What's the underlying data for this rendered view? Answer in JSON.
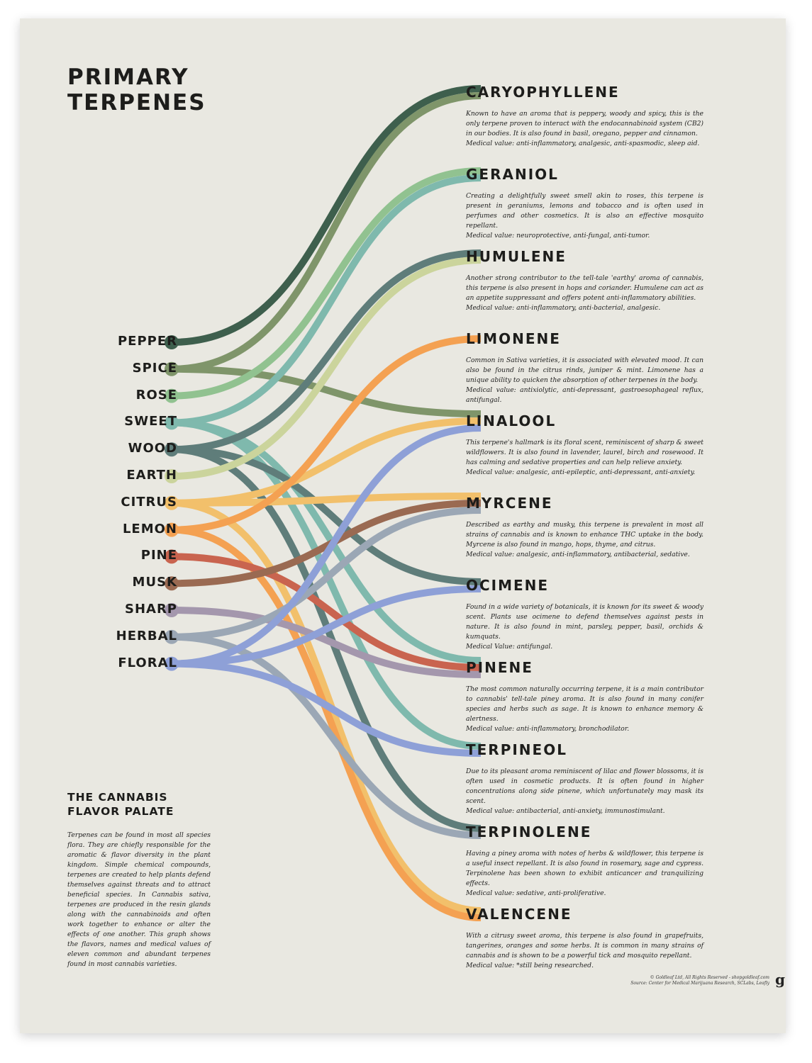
{
  "title": [
    "PRIMARY",
    "TERPENES"
  ],
  "flavors": [
    {
      "name": "PEPPER",
      "color": "#3e5f4d",
      "targets": [
        "CARYOPHYLLENE"
      ]
    },
    {
      "name": "SPICE",
      "color": "#7f956a",
      "targets": [
        "CARYOPHYLLENE",
        "LINALOOL"
      ]
    },
    {
      "name": "ROSE",
      "color": "#91c290",
      "targets": [
        "GERANIOL"
      ]
    },
    {
      "name": "SWEET",
      "color": "#7fb9ad",
      "targets": [
        "GERANIOL",
        "PINENE",
        "TERPINEOL"
      ]
    },
    {
      "name": "WOOD",
      "color": "#5f7d7a",
      "targets": [
        "HUMULENE",
        "OCIMENE",
        "TERPINOLENE"
      ]
    },
    {
      "name": "EARTH",
      "color": "#cbd49c",
      "targets": [
        "HUMULENE"
      ]
    },
    {
      "name": "CITRUS",
      "color": "#f2c06b",
      "targets": [
        "LINALOOL",
        "MYRCENE",
        "VALENCENE"
      ]
    },
    {
      "name": "LEMON",
      "color": "#f4a152",
      "targets": [
        "LIMONENE",
        "VALENCENE"
      ]
    },
    {
      "name": "PINE",
      "color": "#c9644f",
      "targets": [
        "PINENE"
      ]
    },
    {
      "name": "MUSK",
      "color": "#9a6a52",
      "targets": [
        "MYRCENE"
      ]
    },
    {
      "name": "SHARP",
      "color": "#a497ad",
      "targets": [
        "PINENE"
      ]
    },
    {
      "name": "HERBAL",
      "color": "#9ba7b5",
      "targets": [
        "MYRCENE",
        "TERPINOLENE"
      ]
    },
    {
      "name": "FLORAL",
      "color": "#8ea0d7",
      "targets": [
        "LINALOOL",
        "OCIMENE",
        "TERPINEOL"
      ]
    }
  ],
  "terpenes": [
    {
      "name": "CARYOPHYLLENE",
      "desc": "Known to have an aroma that is peppery, woody and spicy, this is the only terpene proven to interact with the endocannabinoid system (CB2) in our bodies. It is also found in basil, oregano, pepper and cinnamon.",
      "medical": "Medical value: anti-inflammatory, analgesic, anti-spasmodic, sleep aid."
    },
    {
      "name": "GERANIOL",
      "desc": "Creating a delightfully sweet smell akin to roses, this terpene is present in geraniums, lemons and tobacco and is often used in perfumes and other cosmetics. It is also an effective mosquito repellant.",
      "medical": "Medical value: neuroprotective, anti-fungal, anti-tumor."
    },
    {
      "name": "HUMULENE",
      "desc": "Another strong contributor to the tell-tale 'earthy' aroma of cannabis, this terpene is also present in hops and coriander. Humulene can act as an appetite suppressant and offers potent anti-inflammatory abilities.",
      "medical": "Medical value: anti-inflammatory, anti-bacterial, analgesic."
    },
    {
      "name": "LIMONENE",
      "desc": "Common in Sativa varieties, it is associated with elevated mood. It can also be found in the citrus rinds, juniper & mint. Limonene has a unique ability to quicken the absorption of other terpenes in the body.",
      "medical": "Medical value: antixiolytic, anti-depressant, gastroesophageal reflux, antifungal."
    },
    {
      "name": "LINALOOL",
      "desc": "This terpene's hallmark is its floral scent, reminiscent of sharp & sweet wildflowers. It is also found in lavender, laurel, birch and rosewood. It has calming and sedative properties and can help relieve anxiety.",
      "medical": "Medical value: analgesic, anti-epileptic, anti-depressant, anti-anxiety."
    },
    {
      "name": "MYRCENE",
      "desc": "Described as earthy and musky, this terpene is prevalent in most all strains of cannabis and is known to enhance THC uptake in the body. Myrcene is also found in mango, hops, thyme, and citrus.",
      "medical": "Medical value: analgesic, anti-inflammatory, antibacterial, sedative."
    },
    {
      "name": "OCIMENE",
      "desc": "Found in a wide variety of botanicals, it is known for its sweet & woody scent. Plants use ocimene to defend themselves against pests in nature. It is also found in mint, parsley, pepper, basil, orchids & kumquats.",
      "medical": "Medical Value: antifungal."
    },
    {
      "name": "PINENE",
      "desc": "The most common naturally occurring terpene, it is a main contributor to cannabis' tell-tale piney aroma. It is also found in many conifer species and herbs such as sage. It is known to enhance memory & alertness.",
      "medical": "Medical value: anti-inflammatory, bronchodilator."
    },
    {
      "name": "TERPINEOL",
      "desc": "Due to its pleasant aroma reminiscent of lilac and flower blossoms, it is often used in cosmetic products. It is often found in higher concentrations along side pinene, which unfortunately may mask its scent.",
      "medical": "Medical value: antibacterial, anti-anxiety, immunostimulant."
    },
    {
      "name": "TERPINOLENE",
      "desc": "Having a piney aroma with notes of herbs & wildflower, this terpene is a useful insect repellant. It is also found in rosemary, sage and cypress. Terpinolene has been shown to exhibit anticancer and tranquilizing effects.",
      "medical": "Medical value: sedative, anti-proliferative."
    },
    {
      "name": "VALENCENE",
      "desc": "With a citrusy sweet aroma, this terpene is also found in grapefruits, tangerines, oranges and some herbs. It is common in many strains of cannabis and is shown to be a powerful tick and mosquito repellant.",
      "medical": "Medical value: *still being researched."
    }
  ],
  "subtitle": [
    "THE CANNABIS",
    "FLAVOR PALATE"
  ],
  "intro": "Terpenes can be found in most all species flora. They are chiefly responsible for the aromatic & flavor diversity in the plant kingdom. Simple chemical compounds, terpenes are created to help plants defend themselves against threats and to attract beneficial species. In Cannabis sativa, terpenes are produced in the resin glands along with the cannabinoids and often work together to enhance or alter the effects of one another. This graph shows the flavors, names and medical values of eleven common and abundant terpenes found in most cannabis varieties.",
  "footer": {
    "copyright": "© Goldleaf Ltd, All Rights Reserved - shopgoldleaf.com",
    "source": "Source: Center for Medical Marijuana Research, SCLabs, Leafly",
    "logo": "g"
  }
}
